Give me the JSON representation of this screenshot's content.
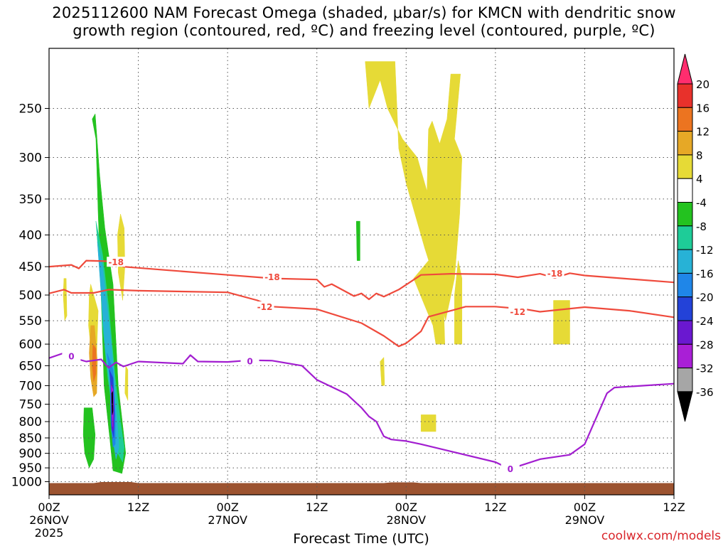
{
  "title": {
    "line1": "2025112600 NAM Forecast Omega (shaded, μbar/s) for KMCN with dendritic snow",
    "line2": "growth region (contoured, red, ºC) and freezing level (contoured, purple, ºC)"
  },
  "credit": "coolwx.com/models",
  "chart_data": {
    "type": "time-height contour",
    "xlabel": "Forecast Time (UTC)",
    "x_ticks": [
      {
        "hour": 0,
        "label": "00Z",
        "sub": "26NOV",
        "sub2": "2025"
      },
      {
        "hour": 12,
        "label": "12Z",
        "sub": "",
        "sub2": ""
      },
      {
        "hour": 24,
        "label": "00Z",
        "sub": "27NOV",
        "sub2": ""
      },
      {
        "hour": 36,
        "label": "12Z",
        "sub": "",
        "sub2": ""
      },
      {
        "hour": 48,
        "label": "00Z",
        "sub": "28NOV",
        "sub2": ""
      },
      {
        "hour": 60,
        "label": "12Z",
        "sub": "",
        "sub2": ""
      },
      {
        "hour": 72,
        "label": "00Z",
        "sub": "29NOV",
        "sub2": ""
      },
      {
        "hour": 84,
        "label": "12Z",
        "sub": "",
        "sub2": ""
      }
    ],
    "xlim": [
      0,
      84
    ],
    "y_ticks": [
      250,
      300,
      350,
      400,
      450,
      500,
      550,
      600,
      650,
      700,
      750,
      800,
      850,
      900,
      950,
      1000
    ],
    "ylim": [
      1050,
      200
    ],
    "y_scale": "log-pressure",
    "grid": true,
    "colorbar": {
      "labels": [
        "20",
        "16",
        "12",
        "8",
        "4",
        "-4",
        "-8",
        "-12",
        "-16",
        "-20",
        "-24",
        "-28",
        "-32",
        "-36"
      ],
      "colors": [
        "#ff2d6e",
        "#e8312b",
        "#ec7420",
        "#e6a826",
        "#e6da36",
        "#ffffff",
        "#23c21f",
        "#1ecc98",
        "#27b2d6",
        "#1f86e8",
        "#2342d8",
        "#6a18d0",
        "#a91fd6",
        "#a6a6a6",
        "#000000"
      ]
    },
    "contours": [
      {
        "level": "-18",
        "color": "#ef4a3c",
        "points": [
          [
            0,
            450
          ],
          [
            3,
            447
          ],
          [
            4,
            453
          ],
          [
            5,
            440
          ],
          [
            8,
            441
          ],
          [
            10,
            450
          ],
          [
            12,
            452
          ],
          [
            24,
            464
          ],
          [
            30,
            470
          ],
          [
            36,
            472
          ],
          [
            37,
            485
          ],
          [
            38,
            480
          ],
          [
            41,
            502
          ],
          [
            42,
            497
          ],
          [
            43,
            508
          ],
          [
            44,
            497
          ],
          [
            45,
            503
          ],
          [
            47,
            490
          ],
          [
            50,
            464
          ],
          [
            54,
            462
          ],
          [
            60,
            463
          ],
          [
            63,
            468
          ],
          [
            66,
            462
          ],
          [
            68,
            469
          ],
          [
            70,
            461
          ],
          [
            72,
            465
          ],
          [
            84,
            477
          ]
        ],
        "labels": [
          [
            9,
            443
          ],
          [
            30,
            468
          ],
          [
            68,
            462
          ]
        ]
      },
      {
        "level": "-12",
        "color": "#ef4a3c",
        "points": [
          [
            0,
            497
          ],
          [
            2,
            490
          ],
          [
            3,
            496
          ],
          [
            6,
            496
          ],
          [
            8,
            490
          ],
          [
            12,
            492
          ],
          [
            24,
            495
          ],
          [
            28,
            510
          ],
          [
            30,
            522
          ],
          [
            36,
            527
          ],
          [
            42,
            555
          ],
          [
            45,
            582
          ],
          [
            47,
            605
          ],
          [
            48,
            598
          ],
          [
            50,
            572
          ],
          [
            51,
            542
          ],
          [
            54,
            530
          ],
          [
            56,
            522
          ],
          [
            60,
            522
          ],
          [
            64,
            527
          ],
          [
            66,
            532
          ],
          [
            72,
            523
          ],
          [
            78,
            530
          ],
          [
            84,
            543
          ]
        ],
        "labels": [
          [
            29,
            523
          ],
          [
            63,
            533
          ]
        ]
      },
      {
        "level": "0",
        "color": "#a21ed0",
        "points": [
          [
            0,
            632
          ],
          [
            2,
            620
          ],
          [
            3,
            630
          ],
          [
            5,
            640
          ],
          [
            7,
            635
          ],
          [
            8,
            655
          ],
          [
            9,
            642
          ],
          [
            10,
            652
          ],
          [
            12,
            640
          ],
          [
            18,
            645
          ],
          [
            19,
            625
          ],
          [
            20,
            640
          ],
          [
            24,
            641
          ],
          [
            27,
            637
          ],
          [
            30,
            638
          ],
          [
            34,
            650
          ],
          [
            36,
            685
          ],
          [
            40,
            722
          ],
          [
            42,
            760
          ],
          [
            43,
            785
          ],
          [
            44,
            800
          ],
          [
            45,
            845
          ],
          [
            46,
            855
          ],
          [
            48,
            860
          ],
          [
            50,
            870
          ],
          [
            60,
            930
          ],
          [
            62,
            955
          ],
          [
            63,
            945
          ],
          [
            66,
            920
          ],
          [
            70,
            905
          ],
          [
            72,
            870
          ],
          [
            75,
            720
          ],
          [
            76,
            705
          ],
          [
            80,
            700
          ],
          [
            84,
            695
          ]
        ],
        "labels": [
          [
            3,
            628
          ],
          [
            27,
            640
          ],
          [
            62,
            955
          ]
        ]
      }
    ],
    "omega_regions": [
      {
        "value": -8,
        "color": "#23c21f",
        "points": [
          [
            5.8,
            260
          ],
          [
            6.3,
            280
          ],
          [
            6.6,
            370
          ],
          [
            6.9,
            460
          ],
          [
            7.4,
            700
          ],
          [
            8.2,
            860
          ],
          [
            8.6,
            960
          ],
          [
            9.8,
            970
          ],
          [
            10.3,
            900
          ],
          [
            10.0,
            830
          ],
          [
            9.3,
            700
          ],
          [
            8.6,
            480
          ],
          [
            7.5,
            390
          ],
          [
            6.8,
            320
          ],
          [
            6.2,
            255
          ]
        ]
      },
      {
        "value": -8,
        "color": "#23c21f",
        "points": [
          [
            4.7,
            760
          ],
          [
            5.8,
            760
          ],
          [
            6.2,
            840
          ],
          [
            6.0,
            920
          ],
          [
            5.4,
            950
          ],
          [
            4.8,
            900
          ],
          [
            4.6,
            840
          ]
        ]
      },
      {
        "value": -12,
        "color": "#1ecc98",
        "points": [
          [
            6.3,
            380
          ],
          [
            6.9,
            470
          ],
          [
            7.2,
            560
          ],
          [
            7.9,
            680
          ],
          [
            8.6,
            780
          ],
          [
            9.0,
            890
          ],
          [
            9.9,
            930
          ],
          [
            10.1,
            880
          ],
          [
            9.6,
            800
          ],
          [
            8.9,
            680
          ],
          [
            8.0,
            520
          ],
          [
            7.2,
            430
          ]
        ]
      },
      {
        "value": -16,
        "color": "#27b2d6",
        "points": [
          [
            6.5,
            410
          ],
          [
            7.0,
            500
          ],
          [
            7.6,
            620
          ],
          [
            8.2,
            700
          ],
          [
            8.4,
            830
          ],
          [
            9.0,
            920
          ],
          [
            9.4,
            880
          ],
          [
            9.1,
            780
          ],
          [
            8.8,
            680
          ],
          [
            8.1,
            560
          ],
          [
            7.2,
            450
          ]
        ]
      },
      {
        "value": -20,
        "color": "#1f86e8",
        "points": [
          [
            7.8,
            620
          ],
          [
            8.2,
            680
          ],
          [
            8.3,
            800
          ],
          [
            8.6,
            880
          ],
          [
            8.9,
            870
          ],
          [
            8.9,
            780
          ],
          [
            8.6,
            660
          ]
        ]
      },
      {
        "value": -24,
        "color": "#2342d8",
        "points": [
          [
            8.1,
            660
          ],
          [
            8.3,
            700
          ],
          [
            8.4,
            820
          ],
          [
            8.7,
            850
          ],
          [
            8.8,
            780
          ],
          [
            8.6,
            680
          ]
        ]
      },
      {
        "value": -28,
        "color": "#6a18d0",
        "points": [
          [
            8.3,
            690
          ],
          [
            8.4,
            740
          ],
          [
            8.5,
            830
          ],
          [
            8.7,
            820
          ],
          [
            8.7,
            740
          ]
        ]
      },
      {
        "value": -32,
        "color": "#a91fd6",
        "points": [
          [
            8.35,
            700
          ],
          [
            8.45,
            760
          ],
          [
            8.55,
            815
          ],
          [
            8.65,
            770
          ],
          [
            8.6,
            710
          ]
        ]
      },
      {
        "value": -36,
        "color": "#000000",
        "points": [
          [
            8.42,
            720
          ],
          [
            8.5,
            780
          ],
          [
            8.6,
            770
          ],
          [
            8.55,
            715
          ]
        ]
      },
      {
        "value": 4,
        "color": "#e6da36",
        "points": [
          [
            5.6,
            480
          ],
          [
            6.6,
            530
          ],
          [
            6.4,
            620
          ],
          [
            6.2,
            660
          ],
          [
            5.7,
            620
          ],
          [
            5.3,
            560
          ],
          [
            5.4,
            500
          ]
        ]
      },
      {
        "value": 8,
        "color": "#e6a826",
        "points": [
          [
            5.6,
            560
          ],
          [
            6.1,
            560
          ],
          [
            6.5,
            640
          ],
          [
            6.4,
            720
          ],
          [
            6.0,
            730
          ],
          [
            5.6,
            680
          ],
          [
            5.4,
            620
          ]
        ]
      },
      {
        "value": 12,
        "color": "#ec7420",
        "points": [
          [
            5.9,
            600
          ],
          [
            6.3,
            610
          ],
          [
            6.3,
            670
          ],
          [
            6.0,
            690
          ],
          [
            5.8,
            650
          ]
        ]
      },
      {
        "value": 4,
        "color": "#e6da36",
        "points": [
          [
            9.6,
            370
          ],
          [
            10.1,
            390
          ],
          [
            10.2,
            450
          ],
          [
            9.9,
            510
          ],
          [
            9.3,
            460
          ],
          [
            9.2,
            400
          ]
        ]
      },
      {
        "value": 4,
        "color": "#e6da36",
        "points": [
          [
            10.3,
            650
          ],
          [
            10.6,
            660
          ],
          [
            10.6,
            740
          ],
          [
            10.2,
            720
          ]
        ]
      },
      {
        "value": 4,
        "color": "#e6da36",
        "points": [
          [
            2.0,
            470
          ],
          [
            2.3,
            470
          ],
          [
            2.4,
            540
          ],
          [
            2.1,
            550
          ],
          [
            1.9,
            500
          ]
        ]
      },
      {
        "value": 4,
        "color": "#e6da36",
        "points": [
          [
            42.5,
            210
          ],
          [
            46.5,
            210
          ],
          [
            47.0,
            290
          ],
          [
            48.0,
            330
          ],
          [
            50.5,
            420
          ],
          [
            52.5,
            500
          ],
          [
            53.3,
            550
          ],
          [
            54.5,
            470
          ],
          [
            55.2,
            370
          ],
          [
            55.5,
            300
          ],
          [
            54.5,
            280
          ],
          [
            55.3,
            220
          ],
          [
            54.0,
            220
          ],
          [
            53.5,
            260
          ],
          [
            52.5,
            285
          ],
          [
            51.5,
            262
          ],
          [
            51,
            270
          ],
          [
            50.8,
            340
          ],
          [
            49.5,
            300
          ],
          [
            47.5,
            280
          ],
          [
            45.5,
            250
          ],
          [
            44.5,
            225
          ],
          [
            43.0,
            250
          ]
        ]
      },
      {
        "value": 4,
        "color": "#e6da36",
        "points": [
          [
            49.0,
            470
          ],
          [
            51.0,
            440
          ],
          [
            53.0,
            500
          ],
          [
            53.2,
            600
          ],
          [
            52.0,
            600
          ],
          [
            51.6,
            560
          ],
          [
            50.5,
            520
          ]
        ]
      },
      {
        "value": 4,
        "color": "#e6da36",
        "points": [
          [
            55.0,
            440
          ],
          [
            55.5,
            470
          ],
          [
            55.5,
            600
          ],
          [
            54.5,
            600
          ],
          [
            54.5,
            500
          ]
        ]
      },
      {
        "value": 4,
        "color": "#e6da36",
        "points": [
          [
            50.0,
            780
          ],
          [
            52.0,
            780
          ],
          [
            52.0,
            830
          ],
          [
            50.0,
            830
          ]
        ]
      },
      {
        "value": 4,
        "color": "#e6da36",
        "points": [
          [
            44.5,
            640
          ],
          [
            45.0,
            630
          ],
          [
            45.1,
            700
          ],
          [
            44.7,
            700
          ]
        ]
      },
      {
        "value": 4,
        "color": "#e6da36",
        "points": [
          [
            67.8,
            510
          ],
          [
            70.0,
            510
          ],
          [
            70.0,
            600
          ],
          [
            67.8,
            600
          ]
        ]
      },
      {
        "value": -8,
        "color": "#23c21f",
        "points": [
          [
            41.3,
            380
          ],
          [
            41.8,
            380
          ],
          [
            41.8,
            440
          ],
          [
            41.4,
            440
          ]
        ]
      }
    ],
    "terrain": {
      "color": "#9c5330",
      "top_pressure": 1000
    }
  }
}
